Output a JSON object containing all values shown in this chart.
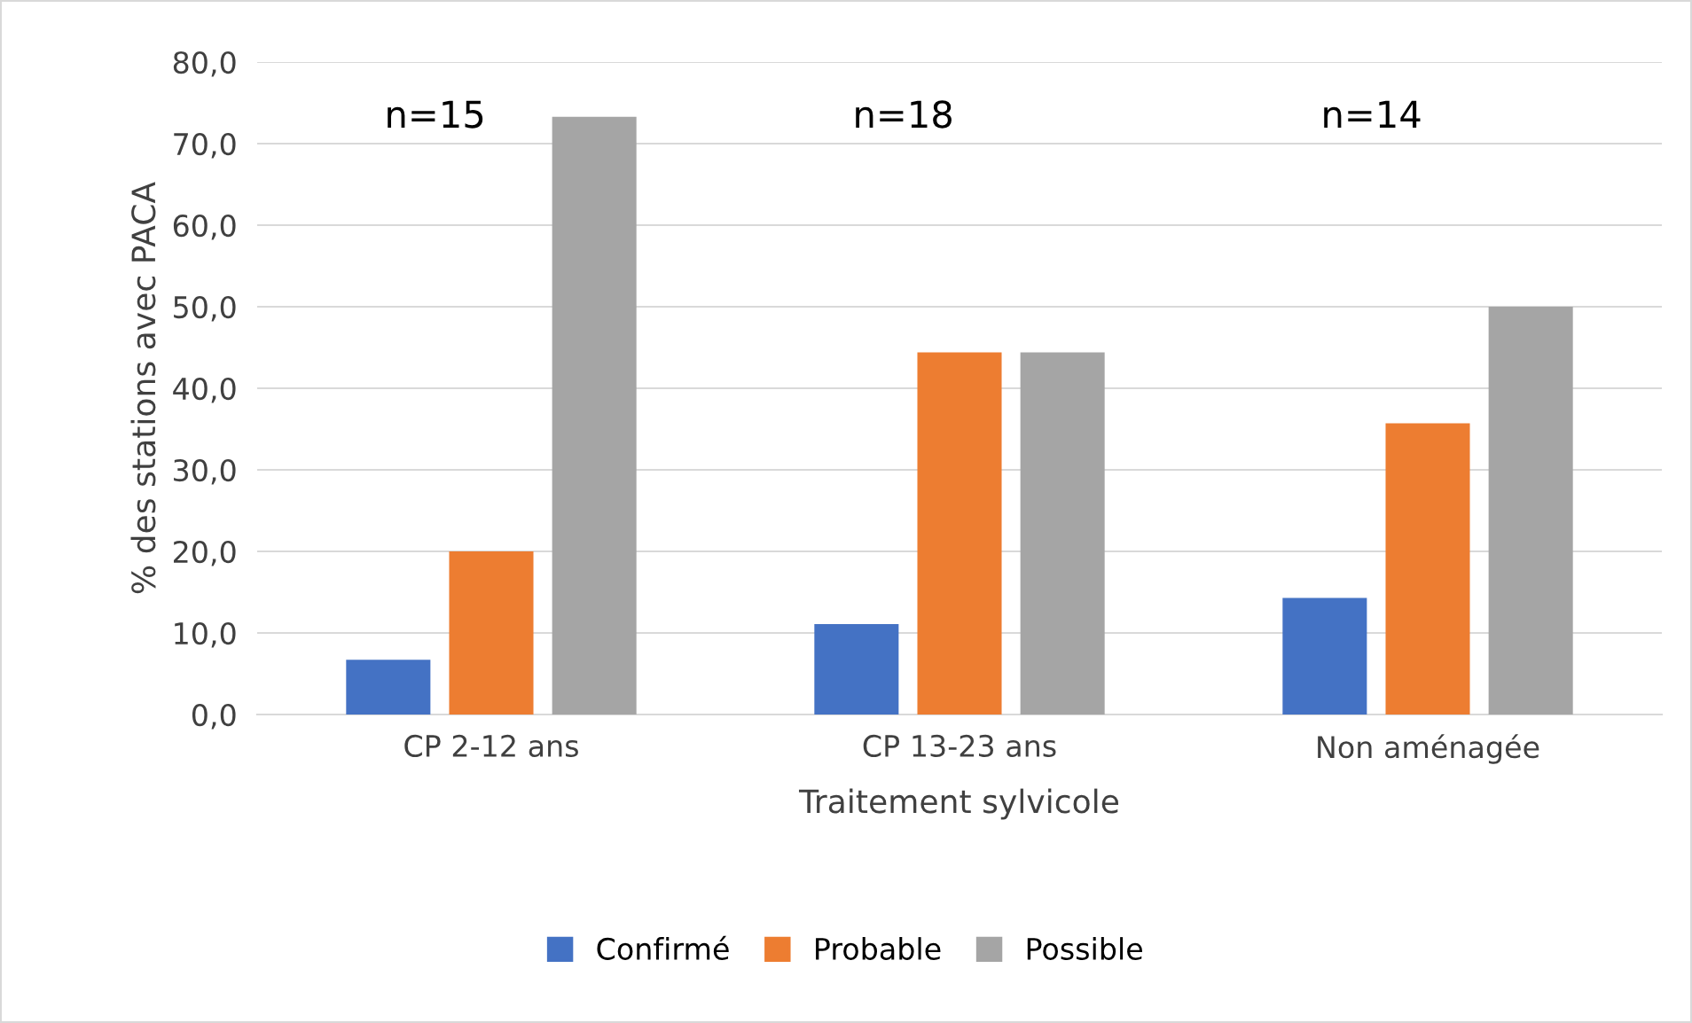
{
  "chart_data": {
    "type": "bar",
    "xlabel": "Traitement sylvicole",
    "ylabel": "% des stations avec PACA",
    "categories": [
      "CP 2-12 ans",
      "CP 13-23 ans",
      "Non aménagée"
    ],
    "series": [
      {
        "name": "Confirmé",
        "color": "#4472c4",
        "values": [
          6.7,
          11.1,
          14.3
        ]
      },
      {
        "name": "Probable",
        "color": "#ed7d31",
        "values": [
          20.0,
          44.4,
          35.7
        ]
      },
      {
        "name": "Possible",
        "color": "#a5a5a5",
        "values": [
          73.3,
          44.4,
          50.0
        ]
      }
    ],
    "ylim": [
      0,
      80
    ],
    "yticks": [
      {
        "value": 0,
        "label": "0,0"
      },
      {
        "value": 10,
        "label": "10,0"
      },
      {
        "value": 20,
        "label": "20,0"
      },
      {
        "value": 30,
        "label": "30,0"
      },
      {
        "value": 40,
        "label": "40,0"
      },
      {
        "value": 50,
        "label": "50,0"
      },
      {
        "value": 60,
        "label": "60,0"
      },
      {
        "value": 70,
        "label": "70,0"
      },
      {
        "value": 80,
        "label": "80,0"
      }
    ],
    "annotations": [
      "n=15",
      "n=18",
      "n=14"
    ],
    "grid": "y",
    "legend": "bottom"
  }
}
